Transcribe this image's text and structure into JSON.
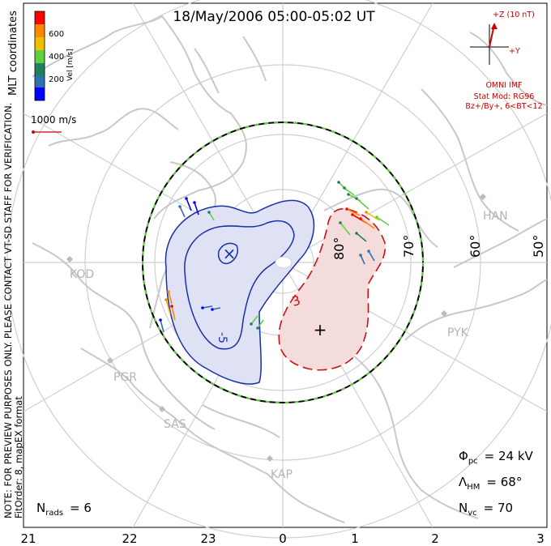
{
  "title": "18/May/2006 05:00-05:02 UT",
  "coordinate_note": "MLT coordinates",
  "colorbar": {
    "label": "Vel [m/s]",
    "ticks": [
      "600",
      "400",
      "200"
    ],
    "colors": [
      "#ff0000",
      "#ff8800",
      "#f0c000",
      "#60d040",
      "#208060",
      "#3070b0",
      "#0000ff"
    ]
  },
  "velocity_scale": {
    "label": "1000 m/s",
    "color": "#cc0000"
  },
  "side_note_lines": [
    "NOTE: FOR PREVIEW PURPOSES ONLY. PLEASE CONTACT VT-SD STAFF FOR VERIFICATION.",
    "FitOrder: 8, mapEX format"
  ],
  "imf": {
    "plus_z": "+Z (10 nT)",
    "plus_y": "+Y",
    "source": "OMNI IMF",
    "stat_mod": "Stat Mod: RG96",
    "condition": "Bz+/By+, 6<BT<12",
    "color": "#cc0000"
  },
  "latitude_labels": [
    "80°",
    "70°",
    "60°",
    "50°"
  ],
  "stations": [
    "HAN",
    "KOD",
    "PYK",
    "PGR",
    "SAS",
    "KAP"
  ],
  "contours": {
    "negative_label": "-5",
    "positive_label": "3",
    "negative_color": "#1a2fa8",
    "positive_color": "#cc1111",
    "negative_fill": "#dfe2f4",
    "positive_fill": "#f5dcdc"
  },
  "stats": {
    "phi_symbol": "Φ",
    "phi_sub": "pc",
    "phi_value": "=  24 kV",
    "lambda_symbol": "Λ",
    "lambda_sub": "HM",
    "lambda_value": "=  68°",
    "nvc_symbol": "N",
    "nvc_sub": "vc",
    "nvc_value": "=  70",
    "nrads_symbol": "N",
    "nrads_sub": "rads",
    "nrads_value": "=  6"
  },
  "mlt_axis": [
    "21",
    "22",
    "23",
    "0",
    "1",
    "2",
    "3"
  ]
}
